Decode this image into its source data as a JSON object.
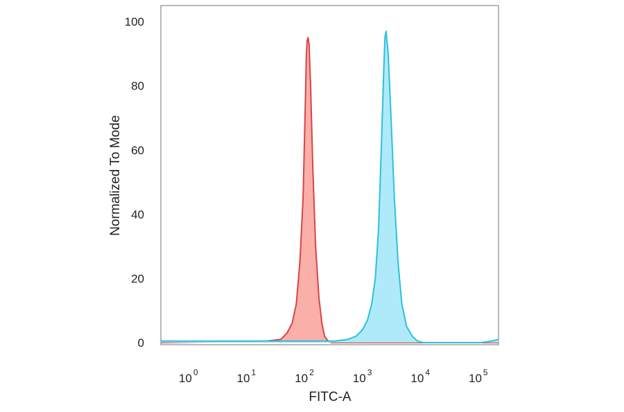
{
  "chart_data": {
    "type": "area",
    "title": "",
    "xlabel": "FITC-A",
    "ylabel": "Normalized To Mode",
    "x_scale": "log",
    "xlim": [
      0.3,
      200000
    ],
    "ylim": [
      0,
      105
    ],
    "grid": false,
    "x_ticks": [
      {
        "value": 1,
        "base": "10",
        "exp": "0"
      },
      {
        "value": 10,
        "base": "10",
        "exp": "1"
      },
      {
        "value": 100,
        "base": "10",
        "exp": "2"
      },
      {
        "value": 1000,
        "base": "10",
        "exp": "3"
      },
      {
        "value": 10000,
        "base": "10",
        "exp": "4"
      },
      {
        "value": 100000,
        "base": "10",
        "exp": "5"
      }
    ],
    "y_ticks": [
      {
        "value": 0,
        "label": "0"
      },
      {
        "value": 20,
        "label": "20"
      },
      {
        "value": 40,
        "label": "40"
      },
      {
        "value": 60,
        "label": "60"
      },
      {
        "value": 80,
        "label": "80"
      },
      {
        "value": 100,
        "label": "100"
      }
    ],
    "series": [
      {
        "color": "#d64545",
        "fill": "#f9a6a0",
        "x": [
          0.3,
          20,
          35,
          45,
          55,
          65,
          75,
          85,
          92,
          97,
          100,
          104,
          108,
          115,
          125,
          140,
          160,
          180,
          200,
          230,
          260,
          300,
          2000,
          200000
        ],
        "y": [
          0,
          0.5,
          1,
          3,
          6,
          12,
          25,
          45,
          70,
          90,
          94,
          95,
          93,
          80,
          55,
          30,
          14,
          6,
          2,
          0.5,
          0,
          0,
          0,
          0
        ]
      },
      {
        "color": "#2bbfe0",
        "fill": "#a6e8fa",
        "x": [
          0.3,
          1,
          10,
          100,
          300,
          500,
          700,
          900,
          1100,
          1300,
          1500,
          1700,
          1900,
          2100,
          2200,
          2300,
          2500,
          2800,
          3200,
          3700,
          4300,
          5200,
          6500,
          8000,
          10000,
          15000,
          100000,
          150000,
          200000
        ],
        "y": [
          0.5,
          0.5,
          0.5,
          0.5,
          0.5,
          1,
          2,
          4,
          7,
          12,
          20,
          35,
          60,
          85,
          95,
          97,
          90,
          70,
          45,
          25,
          12,
          5,
          2,
          0.5,
          0,
          0,
          0,
          0.5,
          1
        ]
      }
    ]
  }
}
